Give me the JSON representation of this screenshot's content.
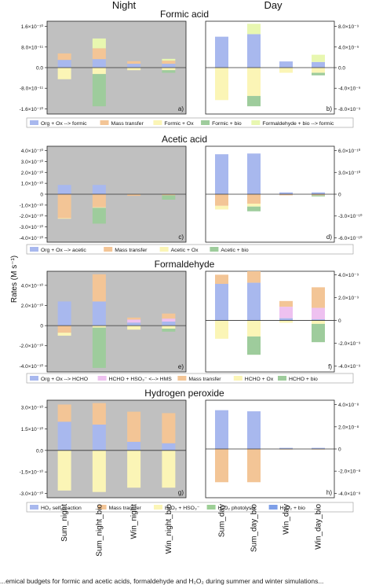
{
  "header": {
    "night_label": "Night",
    "day_label": "Day"
  },
  "ylabel": "Rates (M s⁻¹)",
  "categories": {
    "night": [
      "Sum_night",
      "Sum_night_bio",
      "Win_night",
      "Win_night_bio"
    ],
    "day": [
      "Sum_day",
      "Sum_day_bio",
      "Win_day",
      "Win_day_bio"
    ]
  },
  "caption": "...emical budgets for formic and acetic acids, formaldehyde and H₂O₂ during summer and winter simulations...",
  "colors": {
    "org_ox": "#a8b8ee",
    "mass_transfer": "#f3c596",
    "ox": "#fbf5b6",
    "bio": "#9ecc9c",
    "formaldehyde_bio": "#e8f7b0",
    "hms": "#eec1f0",
    "h2o2_photolysis": "#9dcf96",
    "h2o2_bio": "#7e9fe8",
    "night_bg": "#c0c0c0",
    "day_bg": "#ffffff"
  },
  "chart_data": [
    {
      "type": "bar",
      "stacked": true,
      "title": "Formic acid",
      "night": {
        "ylim": [
          -1.8e-10,
          1.8e-10
        ],
        "ticks": [
          "-1.6×10⁻¹⁰",
          "-8.0×10⁻¹¹",
          "0.0",
          "8.0×10⁻¹¹",
          "1.6×10⁻¹⁰"
        ],
        "tick_values": [
          -1.6e-10,
          -8e-11,
          0,
          8e-11,
          1.6e-10
        ],
        "panel_label": "a)",
        "series": [
          {
            "name": "Org + Ox --> formic",
            "color_key": "org_ox",
            "values": [
              3e-11,
              3.3e-11,
              1.5e-11,
              1.5e-11
            ]
          },
          {
            "name": "Mass transfer",
            "color_key": "mass_transfer",
            "values": [
              2.5e-11,
              4.2e-11,
              1e-11,
              1.2e-11
            ]
          },
          {
            "name": "Formic + Ox",
            "color_key": "ox",
            "values": [
              -4.5e-11,
              -2.5e-11,
              -1e-11,
              -1e-11
            ]
          },
          {
            "name": "Formic + bio",
            "color_key": "bio",
            "values": [
              0,
              -1.25e-10,
              0,
              -1e-11
            ]
          },
          {
            "name": "Formaldehyde + bio --> formic",
            "color_key": "formaldehyde_bio",
            "values": [
              0,
              3.8e-11,
              0,
              7e-12
            ]
          }
        ]
      },
      "day": {
        "ylim": [
          -9e-09,
          9e-09
        ],
        "ticks": [
          "-8.0×10⁻⁹",
          "-4.0×10⁻⁹",
          "0.0",
          "4.0×10⁻⁹",
          "8.0×10⁻⁹"
        ],
        "tick_values": [
          -8e-09,
          -4e-09,
          0,
          4e-09,
          8e-09
        ],
        "panel_label": "b)",
        "series": [
          {
            "name": "Org + Ox --> formic",
            "color_key": "org_ox",
            "values": [
              6e-09,
              6.5e-09,
              1.2e-09,
              1.1e-09
            ]
          },
          {
            "name": "Mass transfer",
            "color_key": "mass_transfer",
            "values": [
              0,
              0,
              0,
              0
            ]
          },
          {
            "name": "Formic + Ox",
            "color_key": "ox",
            "values": [
              -6.3e-09,
              -5.5e-09,
              -1e-09,
              -1e-09
            ]
          },
          {
            "name": "Formic + bio",
            "color_key": "bio",
            "values": [
              0,
              -2e-09,
              0,
              -5e-10
            ]
          },
          {
            "name": "Formaldehyde + bio --> formic",
            "color_key": "formaldehyde_bio",
            "values": [
              0,
              2e-09,
              0,
              1.4e-09
            ]
          }
        ]
      }
    },
    {
      "type": "bar",
      "stacked": true,
      "title": "Acetic acid",
      "night": {
        "ylim": [
          -4.4e-10,
          4.4e-10
        ],
        "ticks": [
          "-4.0×10⁻¹⁰",
          "-3.0×10⁻¹⁰",
          "-2.0×10⁻¹⁰",
          "-1.0×10⁻¹⁰",
          "0",
          "1.0×10⁻¹⁰",
          "2.0×10⁻¹⁰",
          "3.0×10⁻¹⁰",
          "4.0×10⁻¹⁰"
        ],
        "tick_values": [
          -4e-10,
          -3e-10,
          -2e-10,
          -1e-10,
          0,
          1e-10,
          2e-10,
          3e-10,
          4e-10
        ],
        "panel_label": "c)",
        "series": [
          {
            "name": "Org + Ox --> acetic",
            "color_key": "org_ox",
            "values": [
              8.5e-11,
              8.5e-11,
              0,
              0
            ]
          },
          {
            "name": "Mass transfer",
            "color_key": "mass_transfer",
            "values": [
              -2.2e-10,
              -1.2e-10,
              -1.5e-11,
              -1e-11
            ]
          },
          {
            "name": "Acetic + Ox",
            "color_key": "ox",
            "values": [
              -5e-12,
              -5e-12,
              0,
              0
            ]
          },
          {
            "name": "Acetic + bio",
            "color_key": "bio",
            "values": [
              0,
              -1.45e-10,
              0,
              -4e-11
            ]
          }
        ]
      },
      "day": {
        "ylim": [
          -6.6e-10,
          6.6e-10
        ],
        "ticks": [
          "-6.0×10⁻¹⁰",
          "-3.0×10⁻¹⁰",
          "0",
          "3.0×10⁻¹⁰",
          "6.0×10⁻¹⁰"
        ],
        "tick_values": [
          -6e-10,
          -3e-10,
          0,
          3e-10,
          6e-10
        ],
        "panel_label": "d)",
        "series": [
          {
            "name": "Org + Ox --> acetic",
            "color_key": "org_ox",
            "values": [
              5.5e-10,
              5.6e-10,
              2.5e-11,
              2.5e-11
            ]
          },
          {
            "name": "Mass transfer",
            "color_key": "mass_transfer",
            "values": [
              -1.6e-10,
              -1.3e-10,
              -1.5e-11,
              -1.5e-11
            ]
          },
          {
            "name": "Acetic + Ox",
            "color_key": "ox",
            "values": [
              -5e-11,
              -4e-11,
              0,
              0
            ]
          },
          {
            "name": "Acetic + bio",
            "color_key": "bio",
            "values": [
              0,
              -6.5e-11,
              0,
              -1.5e-11
            ]
          }
        ]
      }
    },
    {
      "type": "bar",
      "stacked": true,
      "title": "Formaldehyde",
      "night": {
        "ylim": [
          -4.6e-10,
          5.4e-10
        ],
        "ticks": [
          "-4.0×10⁻¹⁰",
          "-2.0×10⁻¹⁰",
          "0",
          "2.0×10⁻¹⁰",
          "4.0×10⁻¹⁰"
        ],
        "tick_values": [
          -4e-10,
          -2e-10,
          0,
          2e-10,
          4e-10
        ],
        "panel_label": "e)",
        "series": [
          {
            "name": "Org + Ox --> HCHO",
            "color_key": "org_ox",
            "values": [
              2.4e-10,
              2.4e-10,
              3e-11,
              4e-11
            ]
          },
          {
            "name": "HCHO + HSO₃⁻ <--> HMS",
            "color_key": "hms",
            "values": [
              0,
              0,
              3e-11,
              3e-11
            ]
          },
          {
            "name": "Mass transfer",
            "color_key": "mass_transfer",
            "values": [
              -7e-11,
              2.7e-10,
              2e-11,
              5e-11
            ]
          },
          {
            "name": "HCHO + Ox",
            "color_key": "ox",
            "values": [
              -3e-11,
              -2e-11,
              -4e-11,
              -3e-11
            ]
          },
          {
            "name": "HCHO + bio",
            "color_key": "bio",
            "values": [
              0,
              -4e-10,
              0,
              -3e-11
            ]
          }
        ]
      },
      "day": {
        "ylim": [
          -4.5e-09,
          4.3e-09
        ],
        "ticks": [
          "-4.0×10⁻⁹",
          "-2.0×10⁻⁹",
          "0",
          "2.0×10⁻⁹",
          "4.0×10⁻⁹"
        ],
        "tick_values": [
          -4e-09,
          -2e-09,
          0,
          2e-09,
          4e-09
        ],
        "panel_label": "f)",
        "series": [
          {
            "name": "Org + Ox --> HCHO",
            "color_key": "org_ox",
            "values": [
              3.2e-09,
              3.3e-09,
              2e-10,
              1e-10
            ]
          },
          {
            "name": "HCHO + HSO₃⁻ <--> HMS",
            "color_key": "hms",
            "values": [
              0,
              0,
              1e-09,
              1e-09
            ]
          },
          {
            "name": "Mass transfer",
            "color_key": "mass_transfer",
            "values": [
              8e-10,
              1e-09,
              5e-10,
              1.8e-09
            ]
          },
          {
            "name": "HCHO + Ox",
            "color_key": "ox",
            "values": [
              -1.6e-09,
              -1.4e-09,
              -2e-10,
              -3e-10
            ]
          },
          {
            "name": "HCHO + bio",
            "color_key": "bio",
            "values": [
              0,
              -1.6e-09,
              0,
              -1.6e-09
            ]
          }
        ]
      }
    },
    {
      "type": "bar",
      "stacked": true,
      "title": "Hydrogen peroxide",
      "night": {
        "ylim": [
          -3.3e-10,
          3.5e-10
        ],
        "ticks": [
          "-3.0×10⁻¹⁰",
          "-1.5×10⁻¹⁰",
          "0.0",
          "1.5×10⁻¹⁰",
          "3.0×10⁻¹⁰"
        ],
        "tick_values": [
          -3e-10,
          -1.5e-10,
          0,
          1.5e-10,
          3e-10
        ],
        "panel_label": "g)",
        "series": [
          {
            "name": "HO₂ self-reaction",
            "color_key": "org_ox",
            "values": [
              2e-10,
              1.8e-10,
              6e-11,
              5e-11
            ]
          },
          {
            "name": "Mass transfer",
            "color_key": "mass_transfer",
            "values": [
              1.2e-10,
              1.5e-10,
              2.1e-10,
              2.1e-10
            ]
          },
          {
            "name": "H₂O₂ + HSO₃⁻",
            "color_key": "ox",
            "values": [
              -2.8e-10,
              -2.9e-10,
              -2.6e-10,
              -2.6e-10
            ]
          },
          {
            "name": "H₂O₂ photolysis",
            "color_key": "h2o2_photolysis",
            "values": [
              0,
              0,
              0,
              0
            ]
          },
          {
            "name": "H₂O₂ + bio",
            "color_key": "h2o2_bio",
            "values": [
              0,
              0,
              0,
              0
            ]
          }
        ]
      },
      "day": {
        "ylim": [
          -4.4e-08,
          4.4e-08
        ],
        "ticks": [
          "-4.0×10⁻⁸",
          "-2.0×10⁻⁸",
          "0",
          "2.0×10⁻⁸",
          "4.0×10⁻⁸"
        ],
        "tick_values": [
          -4e-08,
          -2e-08,
          0,
          2e-08,
          4e-08
        ],
        "panel_label": "h)",
        "series": [
          {
            "name": "HO₂ self-reaction",
            "color_key": "org_ox",
            "values": [
              3.5e-08,
              3.4e-08,
              1e-09,
              1e-09
            ]
          },
          {
            "name": "Mass transfer",
            "color_key": "mass_transfer",
            "values": [
              -3e-08,
              -3e-08,
              -5e-10,
              -5e-10
            ]
          },
          {
            "name": "H₂O₂ + HSO₃⁻",
            "color_key": "ox",
            "values": [
              0,
              0,
              0,
              0
            ]
          },
          {
            "name": "H₂O₂ photolysis",
            "color_key": "h2o2_photolysis",
            "values": [
              0,
              0,
              0,
              0
            ]
          },
          {
            "name": "H₂O₂ + bio",
            "color_key": "h2o2_bio",
            "values": [
              0,
              0,
              0,
              0
            ]
          }
        ]
      }
    }
  ]
}
